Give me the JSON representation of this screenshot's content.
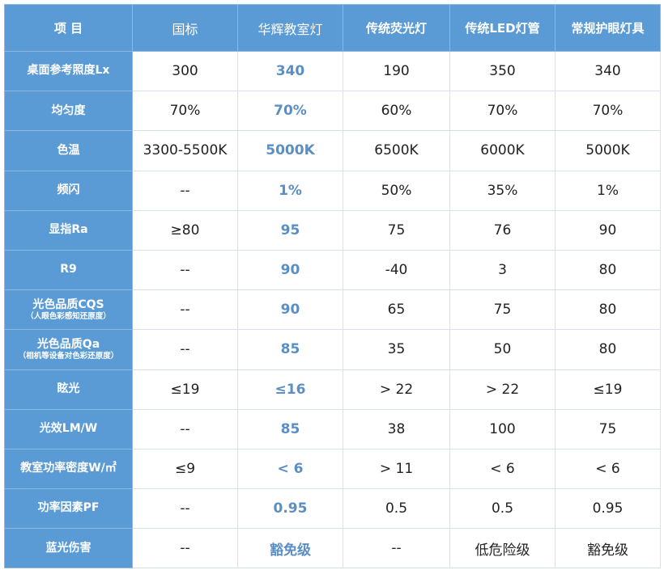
{
  "colors": {
    "header_bg": "#5b9bd5",
    "highlight_text": "#5b8fc4",
    "grid": "#d3e2ee"
  },
  "header": [
    "项  目",
    "国标",
    "华辉教室灯",
    "传统荧光灯",
    "传统LED灯管",
    "常规护眼灯具"
  ],
  "rows": [
    {
      "label": "桌面参考照度Lx",
      "values": [
        "300",
        "340",
        "190",
        "350",
        "340"
      ]
    },
    {
      "label": "均匀度",
      "values": [
        "70%",
        "70%",
        "60%",
        "70%",
        "70%"
      ]
    },
    {
      "label": "色温",
      "values": [
        "3300-5500K",
        "5000K",
        "6500K",
        "6000K",
        "5000K"
      ]
    },
    {
      "label": "频闪",
      "values": [
        "--",
        "1%",
        "50%",
        "35%",
        "1%"
      ]
    },
    {
      "label": "显指Ra",
      "values": [
        "≥80",
        "95",
        "75",
        "76",
        "90"
      ]
    },
    {
      "label": "R9",
      "values": [
        "--",
        "90",
        "-40",
        "3",
        "80"
      ]
    },
    {
      "label": "光色品质CQS",
      "sub": "（人眼色彩感知还原度）",
      "values": [
        "--",
        "90",
        "65",
        "75",
        "80"
      ]
    },
    {
      "label": "光色品质Qa",
      "sub": "（相机等设备对色彩还原度）",
      "values": [
        "--",
        "85",
        "35",
        "50",
        "80"
      ]
    },
    {
      "label": "眩光",
      "values": [
        "≤19",
        "≤16",
        "> 22",
        "> 22",
        "≤19"
      ]
    },
    {
      "label": "光效LM/W",
      "values": [
        "--",
        "85",
        "38",
        "100",
        "75"
      ]
    },
    {
      "label": "教室功率密度W/㎡",
      "values": [
        "≤9",
        "< 6",
        "> 11",
        "< 6",
        "< 6"
      ]
    },
    {
      "label": "功率因素PF",
      "values": [
        "--",
        "0.95",
        "0.5",
        "0.5",
        "0.95"
      ]
    },
    {
      "label": "蓝光伤害",
      "values": [
        "--",
        "豁免级",
        "--",
        "低危险级",
        "豁免级"
      ]
    }
  ]
}
